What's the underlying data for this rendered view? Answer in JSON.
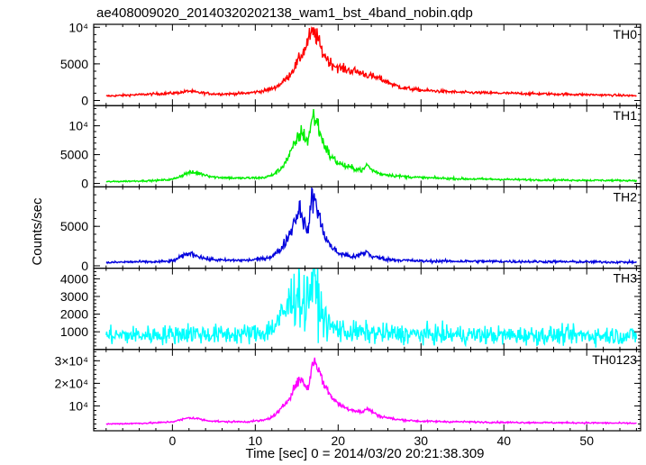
{
  "title": "ae408009020_20140320202138_wam1_bst_4band_nobin.qdp",
  "ylabel": "Counts/sec",
  "xlabel": "Time [sec] 0 = 2014/03/20 20:21:38.309",
  "chart_data": {
    "type": "line",
    "x_range": [
      -9.5,
      56.5
    ],
    "x_ticks": [
      0,
      10,
      20,
      30,
      40,
      50
    ],
    "x_tick_labels": [
      "0",
      "10",
      "20",
      "30",
      "40",
      "50"
    ],
    "x_minor_step": 2,
    "panels": [
      {
        "name": "TH0",
        "color": "#ff0000",
        "ylim": [
          -700,
          10400
        ],
        "y_ticks": [
          0,
          5000,
          10000
        ],
        "y_tick_labels": [
          "0",
          "5000",
          "10⁴"
        ],
        "y_minor_step": 1000,
        "noise": 0.07,
        "points": [
          [
            -8,
            600
          ],
          [
            -6,
            700
          ],
          [
            -4,
            800
          ],
          [
            -2,
            900
          ],
          [
            0,
            1000
          ],
          [
            1,
            1100
          ],
          [
            2,
            1300
          ],
          [
            3,
            1100
          ],
          [
            5,
            900
          ],
          [
            7,
            900
          ],
          [
            9,
            1000
          ],
          [
            11,
            1300
          ],
          [
            12,
            1600
          ],
          [
            13,
            2200
          ],
          [
            14,
            3300
          ],
          [
            15,
            5000
          ],
          [
            15.6,
            6300
          ],
          [
            16,
            7000
          ],
          [
            16.5,
            8600
          ],
          [
            17,
            9300
          ],
          [
            17.5,
            8600
          ],
          [
            18,
            6800
          ],
          [
            19,
            5200
          ],
          [
            20,
            4500
          ],
          [
            21,
            4200
          ],
          [
            22,
            4000
          ],
          [
            23,
            3700
          ],
          [
            24,
            3300
          ],
          [
            25,
            3000
          ],
          [
            26,
            2500
          ],
          [
            27,
            2000
          ],
          [
            28,
            1700
          ],
          [
            30,
            1400
          ],
          [
            35,
            1100
          ],
          [
            40,
            1000
          ],
          [
            45,
            900
          ],
          [
            50,
            800
          ],
          [
            56,
            650
          ]
        ]
      },
      {
        "name": "TH1",
        "color": "#00ee00",
        "ylim": [
          -600,
          13500
        ],
        "y_ticks": [
          0,
          5000,
          10000
        ],
        "y_tick_labels": [
          "0",
          "5000",
          "10⁴"
        ],
        "y_minor_step": 1000,
        "noise": 0.08,
        "points": [
          [
            -8,
            300
          ],
          [
            -5,
            400
          ],
          [
            -2,
            500
          ],
          [
            0,
            700
          ],
          [
            1,
            1300
          ],
          [
            2,
            1900
          ],
          [
            3,
            1800
          ],
          [
            4,
            1500
          ],
          [
            5,
            1100
          ],
          [
            8,
            900
          ],
          [
            11,
            1000
          ],
          [
            12,
            1400
          ],
          [
            13,
            2400
          ],
          [
            14,
            4500
          ],
          [
            15,
            7500
          ],
          [
            15.5,
            8800
          ],
          [
            16,
            8200
          ],
          [
            16.3,
            7200
          ],
          [
            16.7,
            10000
          ],
          [
            17,
            11800
          ],
          [
            17.5,
            10500
          ],
          [
            18,
            7800
          ],
          [
            19,
            4800
          ],
          [
            20,
            3600
          ],
          [
            21,
            2900
          ],
          [
            22,
            2600
          ],
          [
            23,
            2300
          ],
          [
            23.5,
            3300
          ],
          [
            24,
            2400
          ],
          [
            25,
            1700
          ],
          [
            27,
            1300
          ],
          [
            30,
            1000
          ],
          [
            35,
            800
          ],
          [
            40,
            700
          ],
          [
            45,
            600
          ],
          [
            50,
            550
          ],
          [
            56,
            500
          ]
        ]
      },
      {
        "name": "TH2",
        "color": "#0000dd",
        "ylim": [
          -300,
          10000
        ],
        "y_ticks": [
          0,
          5000
        ],
        "y_tick_labels": [
          "0",
          "5000"
        ],
        "y_minor_step": 1000,
        "noise": 0.1,
        "points": [
          [
            -8,
            400
          ],
          [
            -5,
            500
          ],
          [
            -2,
            500
          ],
          [
            0,
            600
          ],
          [
            1,
            1100
          ],
          [
            2,
            1600
          ],
          [
            3,
            1300
          ],
          [
            4,
            900
          ],
          [
            6,
            700
          ],
          [
            9,
            700
          ],
          [
            11,
            900
          ],
          [
            12,
            1200
          ],
          [
            13,
            2000
          ],
          [
            14,
            3700
          ],
          [
            15,
            6500
          ],
          [
            15.5,
            7400
          ],
          [
            16,
            5000
          ],
          [
            16.3,
            4200
          ],
          [
            16.8,
            8300
          ],
          [
            17.1,
            8700
          ],
          [
            17.5,
            7400
          ],
          [
            18,
            4800
          ],
          [
            19,
            2600
          ],
          [
            20,
            1600
          ],
          [
            22,
            1100
          ],
          [
            23.5,
            1800
          ],
          [
            24,
            1200
          ],
          [
            26,
            800
          ],
          [
            30,
            600
          ],
          [
            40,
            550
          ],
          [
            50,
            500
          ],
          [
            56,
            450
          ]
        ]
      },
      {
        "name": "TH3",
        "color": "#00ffff",
        "ylim": [
          0,
          4600
        ],
        "y_ticks": [
          1000,
          2000,
          3000,
          4000
        ],
        "y_tick_labels": [
          "1000",
          "2000",
          "3000",
          "4000"
        ],
        "y_minor_step": 200,
        "noise": 0.28,
        "points": [
          [
            -8,
            800
          ],
          [
            -4,
            800
          ],
          [
            0,
            850
          ],
          [
            2,
            950
          ],
          [
            4,
            850
          ],
          [
            8,
            850
          ],
          [
            11,
            950
          ],
          [
            12,
            1200
          ],
          [
            13,
            1700
          ],
          [
            14,
            2500
          ],
          [
            15,
            3300
          ],
          [
            15.5,
            3000
          ],
          [
            16,
            2300
          ],
          [
            16.5,
            3400
          ],
          [
            17,
            4000
          ],
          [
            17.5,
            3000
          ],
          [
            18,
            2000
          ],
          [
            19,
            1300
          ],
          [
            21,
            1000
          ],
          [
            25,
            900
          ],
          [
            30,
            850
          ],
          [
            40,
            800
          ],
          [
            50,
            800
          ],
          [
            56,
            780
          ]
        ]
      },
      {
        "name": "TH0123",
        "color": "#ff00ff",
        "ylim": [
          -1000,
          35000
        ],
        "y_ticks": [
          10000,
          20000,
          30000
        ],
        "y_tick_labels": [
          "10⁴",
          "2×10⁴",
          "3×10⁴"
        ],
        "y_minor_step": 2000,
        "noise": 0.05,
        "points": [
          [
            -8,
            2000
          ],
          [
            -5,
            2200
          ],
          [
            -2,
            2500
          ],
          [
            0,
            3000
          ],
          [
            1,
            3800
          ],
          [
            2,
            4800
          ],
          [
            3,
            4400
          ],
          [
            4,
            3600
          ],
          [
            6,
            3000
          ],
          [
            9,
            3000
          ],
          [
            11,
            3600
          ],
          [
            12,
            5000
          ],
          [
            13,
            8000
          ],
          [
            14,
            13000
          ],
          [
            15,
            20000
          ],
          [
            15.6,
            22000
          ],
          [
            16,
            19000
          ],
          [
            16.4,
            17500
          ],
          [
            16.8,
            27000
          ],
          [
            17.1,
            30500
          ],
          [
            17.6,
            27000
          ],
          [
            18,
            22000
          ],
          [
            19,
            15000
          ],
          [
            20,
            11000
          ],
          [
            21,
            9000
          ],
          [
            22,
            8000
          ],
          [
            23,
            7200
          ],
          [
            23.5,
            9000
          ],
          [
            24,
            7600
          ],
          [
            25,
            5500
          ],
          [
            27,
            4000
          ],
          [
            30,
            3200
          ],
          [
            40,
            2700
          ],
          [
            50,
            2500
          ],
          [
            56,
            2300
          ]
        ]
      }
    ]
  }
}
